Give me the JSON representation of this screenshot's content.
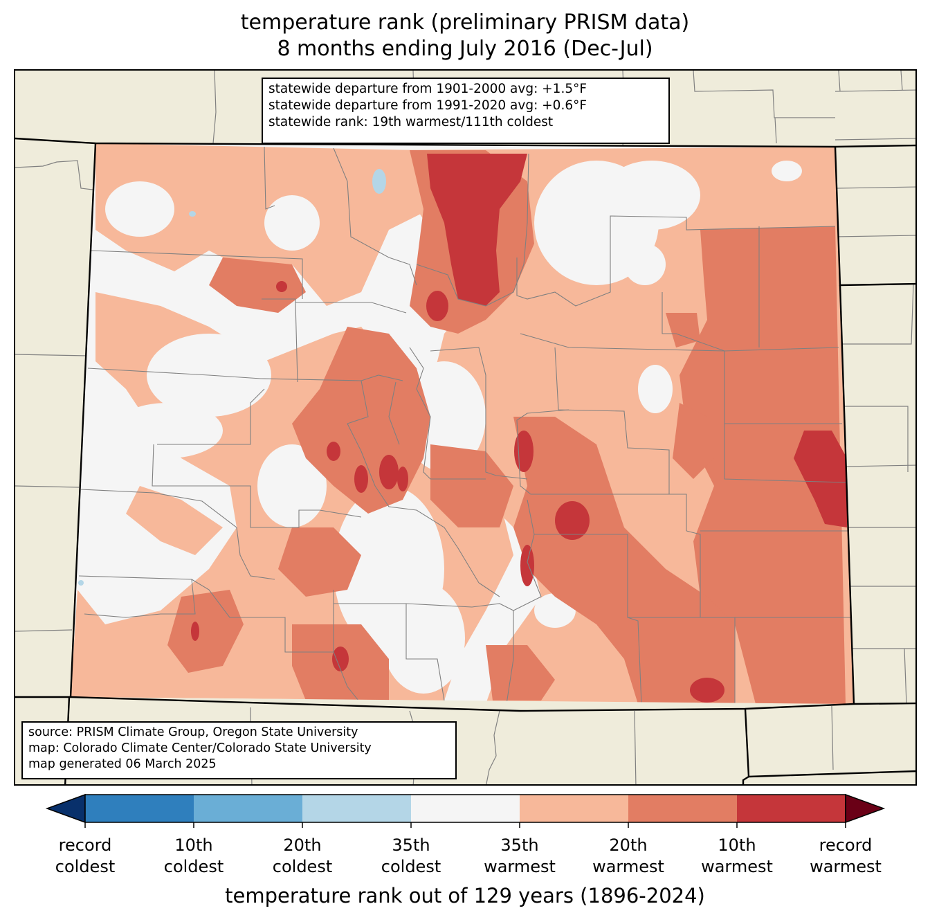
{
  "title_line1": "temperature rank (preliminary PRISM data)",
  "title_line2": "8 months ending July 2016 (Dec-Jul)",
  "stats": {
    "line1": "statewide departure from 1901-2000 avg: +1.5°F",
    "line2": "statewide departure from 1991-2020 avg: +0.6°F",
    "line3": "statewide rank: 19th warmest/111th coldest"
  },
  "credits": {
    "line1": "source: PRISM Climate Group, Oregon State University",
    "line2": "map: Colorado Climate Center/Colorado State University",
    "line3": "map generated 06 March 2025"
  },
  "colorbar": {
    "title": "temperature rank out of 129 years (1896-2024)",
    "ticks": [
      {
        "top": "record",
        "bottom": "coldest"
      },
      {
        "top": "10th",
        "bottom": "coldest"
      },
      {
        "top": "20th",
        "bottom": "coldest"
      },
      {
        "top": "35th",
        "bottom": "coldest"
      },
      {
        "top": "35th",
        "bottom": "warmest"
      },
      {
        "top": "20th",
        "bottom": "warmest"
      },
      {
        "top": "10th",
        "bottom": "warmest"
      },
      {
        "top": "record",
        "bottom": "warmest"
      }
    ],
    "colors": {
      "below_record_coldest": "#08306b",
      "record_to_10th_coldest": "#2f7fbd",
      "10th_to_20th_coldest": "#6aaed6",
      "20th_to_35th_coldest": "#b4d6e7",
      "near_normal": "#f5f5f5",
      "35th_to_20th_warmest": "#f7b89a",
      "20th_to_10th_warmest": "#e27d63",
      "10th_warmest_to_record": "#c5363a",
      "above_record_warmest": "#6a0016"
    }
  },
  "map_colors": {
    "land_outside": "#efecdb",
    "county_lines": "#808080",
    "state_border": "#000000"
  }
}
